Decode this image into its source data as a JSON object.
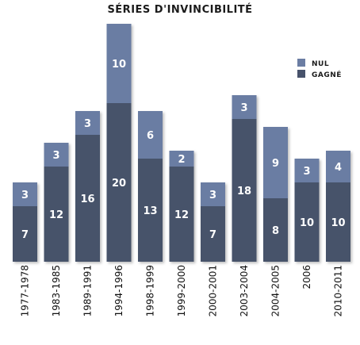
{
  "chart_data": {
    "type": "bar",
    "stacked": true,
    "title": "SÉRIES D'INVINCIBILITÉ",
    "categories": [
      "1977-1978",
      "1983-1985",
      "1989-1991",
      "1994-1996",
      "1998-1999",
      "1999-2000",
      "2000-2001",
      "2003-2004",
      "2004-2005",
      "2006",
      "2010-2011"
    ],
    "series": [
      {
        "name": "GAGNÉ",
        "color": "#47526b",
        "values": [
          7,
          12,
          16,
          20,
          13,
          12,
          7,
          18,
          8,
          10,
          10
        ]
      },
      {
        "name": "NUL",
        "color": "#6b7da3",
        "values": [
          3,
          3,
          3,
          10,
          6,
          2,
          3,
          3,
          9,
          3,
          4
        ]
      }
    ],
    "ylim": [
      0,
      30
    ],
    "grid": false,
    "legend_position": "top-right"
  }
}
